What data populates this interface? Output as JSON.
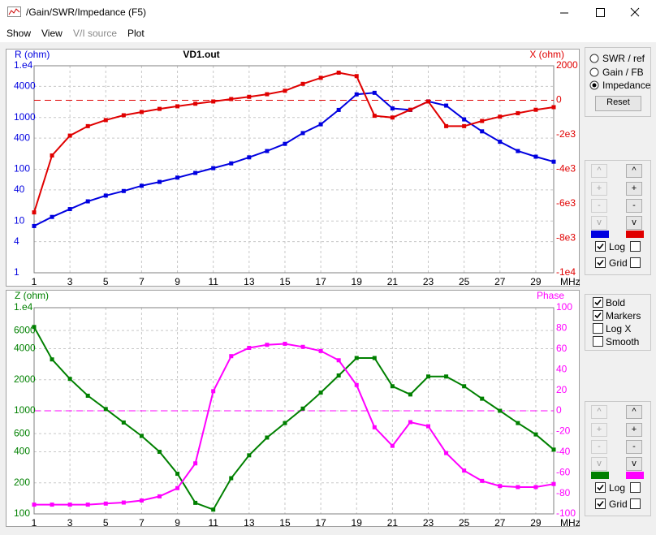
{
  "window": {
    "title": "/Gain/SWR/Impedance (F5)"
  },
  "menu": [
    "Show",
    "View",
    "V/I source",
    "Plot"
  ],
  "menu_disabled": [
    false,
    false,
    true,
    false
  ],
  "chart_data": [
    {
      "type": "line",
      "title": "VD1.out",
      "x": [
        1,
        2,
        3,
        4,
        5,
        6,
        7,
        8,
        9,
        10,
        11,
        12,
        13,
        14,
        15,
        16,
        17,
        18,
        19,
        20,
        21,
        22,
        23,
        24,
        25,
        26,
        27,
        28,
        29,
        30
      ],
      "xlim": [
        1,
        30
      ],
      "xticks": [
        1,
        3,
        5,
        7,
        9,
        11,
        13,
        15,
        17,
        19,
        21,
        23,
        25,
        27,
        29
      ],
      "x_label": "MHz",
      "y_label": "R (ohm)",
      "y2_label": "X (ohm)",
      "ylim": [
        1,
        10000
      ],
      "ylog": true,
      "yticks": [
        {
          "value": 10000,
          "label": "1.e4"
        },
        4000,
        1000,
        400,
        100,
        40,
        10,
        4,
        1
      ],
      "y2lim": [
        -10000,
        2000
      ],
      "y2ticks": [
        2000,
        0,
        {
          "value": -2000,
          "label": "-2e3"
        },
        {
          "value": -4000,
          "label": "-4e3"
        },
        {
          "value": -6000,
          "label": "-6e3"
        },
        {
          "value": -8000,
          "label": "-8e3"
        },
        {
          "value": -10000,
          "label": "-1e4"
        }
      ],
      "grid": true,
      "zero_line": true,
      "series": [
        {
          "color": "#0000e0",
          "values": [
            8,
            12,
            17,
            24,
            31,
            38,
            48,
            57,
            69,
            85,
            105,
            130,
            170,
            225,
            310,
            500,
            740,
            1400,
            2800,
            3000,
            1500,
            1400,
            2050,
            1700,
            920,
            540,
            340,
            225,
            175,
            140
          ]
        },
        {
          "color": "#e00000",
          "axis": "y2",
          "values": [
            -6500,
            -3200,
            -2050,
            -1500,
            -1150,
            -870,
            -680,
            -500,
            -350,
            -200,
            -70,
            70,
            200,
            350,
            550,
            950,
            1300,
            1600,
            1400,
            -900,
            -1000,
            -550,
            -70,
            -1500,
            -1500,
            -1200,
            -950,
            -750,
            -550,
            -400
          ]
        }
      ]
    },
    {
      "type": "line",
      "x": [
        1,
        2,
        3,
        4,
        5,
        6,
        7,
        8,
        9,
        10,
        11,
        12,
        13,
        14,
        15,
        16,
        17,
        18,
        19,
        20,
        21,
        22,
        23,
        24,
        25,
        26,
        27,
        28,
        29,
        30
      ],
      "xlim": [
        1,
        30
      ],
      "xticks": [
        1,
        3,
        5,
        7,
        9,
        11,
        13,
        15,
        17,
        19,
        21,
        23,
        25,
        27,
        29
      ],
      "x_label": "MHz",
      "y_label": "Z (ohm)",
      "y2_label": "Phase",
      "ylim": [
        100,
        10000
      ],
      "ylog": true,
      "yticks": [
        {
          "value": 10000,
          "label": "1.e4"
        },
        6000,
        4000,
        2000,
        1000,
        600,
        400,
        200,
        100
      ],
      "y2lim": [
        -100,
        100
      ],
      "y2ticks": [
        100,
        80,
        60,
        40,
        20,
        0,
        -20,
        -40,
        -60,
        -80,
        -100
      ],
      "grid": true,
      "zero_line": true,
      "series": [
        {
          "color": "#008000",
          "values": [
            6500,
            3150,
            2040,
            1400,
            1040,
            770,
            570,
            400,
            245,
            128,
            110,
            222,
            370,
            550,
            760,
            1050,
            1500,
            2200,
            3250,
            3250,
            1730,
            1440,
            2150,
            2150,
            1730,
            1310,
            1000,
            760,
            590,
            420
          ]
        },
        {
          "color": "#ff00ff",
          "axis": "y2",
          "values": [
            -91,
            -91,
            -91,
            -91,
            -90,
            -89,
            -87,
            -83,
            -75,
            -51,
            19,
            53,
            61,
            64,
            65,
            62,
            58,
            49,
            25,
            -16,
            -34,
            -11,
            -15,
            -41,
            -58,
            -68,
            -73,
            -74,
            -74,
            -71
          ]
        }
      ]
    }
  ],
  "controls": {
    "modes": [
      "SWR / ref",
      "Gain / FB",
      "Impedance"
    ],
    "mode_selected": 2,
    "reset": "Reset",
    "axis_buttons": [
      "^",
      "+",
      "-",
      "v"
    ],
    "axis_checks": [
      {
        "label": "Log",
        "checked": true
      },
      {
        "label": "Grid",
        "checked": true
      }
    ],
    "options": [
      {
        "label": "Bold",
        "checked": true
      },
      {
        "label": "Markers",
        "checked": true
      },
      {
        "label": "Log X",
        "checked": false
      },
      {
        "label": "Smooth",
        "checked": false
      }
    ]
  }
}
